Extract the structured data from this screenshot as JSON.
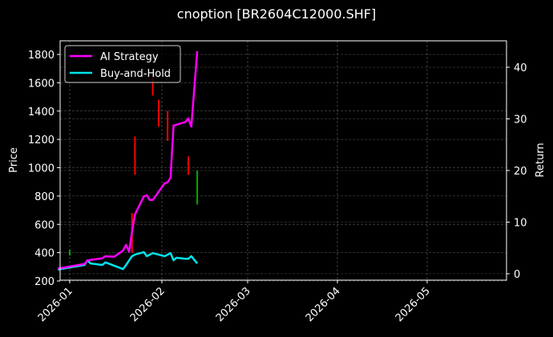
{
  "chart_data": {
    "type": "line",
    "title": "cnoption [BR2604C12000.SHF]",
    "xlabel": "",
    "ylabel_left": "Price",
    "ylabel_right": "Return",
    "x_ticks": [
      "2026-01",
      "2026-02",
      "2026-03",
      "2026-04",
      "2026-05"
    ],
    "y_left_ticks": [
      200,
      400,
      600,
      800,
      1000,
      1200,
      1400,
      1600,
      1800
    ],
    "y_right_ticks": [
      0,
      10,
      20,
      30,
      40
    ],
    "ylim_left": [
      190,
      1890
    ],
    "ylim_right": [
      -1.2,
      45
    ],
    "grid": true,
    "legend_position": "upper left",
    "legend": [
      "AI Strategy",
      "Buy-and-Hold"
    ],
    "colors": {
      "AI Strategy": "#ff00ff",
      "Buy-and-Hold": "#00e5ee",
      "up": "#00aa00",
      "down": "#ff0000"
    },
    "series": [
      {
        "name": "AI Strategy",
        "axis": "right",
        "x": [
          "2025-12-28",
          "2026-01-06",
          "2026-01-07",
          "2026-01-12",
          "2026-01-13",
          "2026-01-16",
          "2026-01-19",
          "2026-01-20",
          "2026-01-21",
          "2026-01-22",
          "2026-01-23",
          "2026-01-26",
          "2026-01-27",
          "2026-01-28",
          "2026-01-29",
          "2026-02-02",
          "2026-02-03",
          "2026-02-04",
          "2026-02-05",
          "2026-02-09",
          "2026-02-10",
          "2026-02-11",
          "2026-02-13"
        ],
        "values": [
          1.0,
          1.9,
          2.6,
          3.0,
          3.4,
          3.3,
          4.5,
          5.6,
          4.3,
          8.1,
          11.5,
          15.0,
          15.2,
          14.3,
          14.3,
          17.5,
          17.7,
          18.6,
          28.7,
          29.4,
          30.1,
          28.5,
          43.1
        ]
      },
      {
        "name": "Buy-and-Hold",
        "axis": "right",
        "x": [
          "2025-12-28",
          "2026-01-06",
          "2026-01-07",
          "2026-01-08",
          "2026-01-12",
          "2026-01-13",
          "2026-01-14",
          "2026-01-19",
          "2026-01-20",
          "2026-01-22",
          "2026-01-23",
          "2026-01-26",
          "2026-01-27",
          "2026-01-29",
          "2026-02-02",
          "2026-02-04",
          "2026-02-05",
          "2026-02-06",
          "2026-02-09",
          "2026-02-10",
          "2026-02-11",
          "2026-02-13"
        ],
        "values": [
          0.8,
          1.7,
          2.6,
          2.0,
          1.7,
          2.2,
          2.0,
          0.9,
          1.7,
          3.4,
          3.7,
          4.2,
          3.4,
          4.0,
          3.4,
          4.0,
          2.6,
          3.1,
          2.9,
          2.9,
          3.4,
          2.0
        ]
      }
    ],
    "candles": [
      {
        "date": "2026-01-01",
        "color": "green",
        "high": 420,
        "low": 380
      },
      {
        "date": "2026-01-23",
        "color": "red",
        "high": 1220,
        "low": 950
      },
      {
        "date": "2026-01-22",
        "color": "red",
        "high": 680,
        "low": 400
      },
      {
        "date": "2026-01-29",
        "color": "red",
        "high": 1650,
        "low": 1510
      },
      {
        "date": "2026-01-31",
        "color": "green",
        "high": 1400,
        "low": 1350
      },
      {
        "date": "2026-01-31",
        "color": "red",
        "high": 1480,
        "low": 1290
      },
      {
        "date": "2026-02-03",
        "color": "red",
        "high": 1400,
        "low": 1190
      },
      {
        "date": "2026-02-10",
        "color": "red",
        "high": 1080,
        "low": 950
      },
      {
        "date": "2026-02-13",
        "color": "green",
        "high": 980,
        "low": 740
      }
    ]
  }
}
